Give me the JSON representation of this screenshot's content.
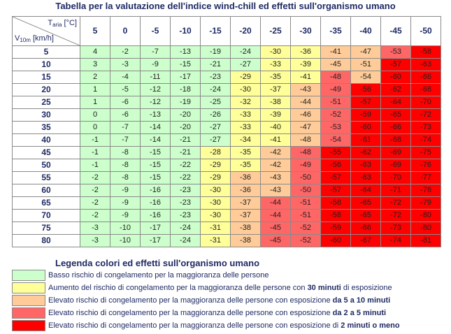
{
  "title": "Tabella per la valutazione dell'indice wind-chill ed effetti sull'organismo umano",
  "corner": {
    "temp_main": "T",
    "temp_sub": "aria",
    "temp_unit": "[°C]",
    "wind_main": "V",
    "wind_sub": "10m",
    "wind_unit": "[km/h]"
  },
  "temperatures": [
    "5",
    "0",
    "-5",
    "-10",
    "-15",
    "-20",
    "-25",
    "-30",
    "-35",
    "-40",
    "-45",
    "-50"
  ],
  "rows": [
    {
      "wind": "5",
      "values": [
        "4",
        "-2",
        "-7",
        "-13",
        "-19",
        "-24",
        "-30",
        "-36",
        "-41",
        "-47",
        "-53",
        "-58"
      ],
      "levels": [
        1,
        1,
        1,
        1,
        1,
        1,
        2,
        2,
        3,
        3,
        4,
        5
      ]
    },
    {
      "wind": "10",
      "values": [
        "3",
        "-3",
        "-9",
        "-15",
        "-21",
        "-27",
        "-33",
        "-39",
        "-45",
        "-51",
        "-57",
        "-63"
      ],
      "levels": [
        1,
        1,
        1,
        1,
        1,
        1,
        2,
        2,
        3,
        3,
        5,
        5
      ]
    },
    {
      "wind": "15",
      "values": [
        "2",
        "-4",
        "-11",
        "-17",
        "-23",
        "-29",
        "-35",
        "-41",
        "-48",
        "-54",
        "-60",
        "-66"
      ],
      "levels": [
        1,
        1,
        1,
        1,
        1,
        2,
        2,
        2,
        4,
        3,
        5,
        5
      ]
    },
    {
      "wind": "20",
      "values": [
        "1",
        "-5",
        "-12",
        "-18",
        "-24",
        "-30",
        "-37",
        "-43",
        "-49",
        "-56",
        "-62",
        "-68"
      ],
      "levels": [
        1,
        1,
        1,
        1,
        1,
        2,
        2,
        3,
        4,
        5,
        5,
        5
      ]
    },
    {
      "wind": "25",
      "values": [
        "1",
        "-6",
        "-12",
        "-19",
        "-25",
        "-32",
        "-38",
        "-44",
        "-51",
        "-57",
        "-64",
        "-70"
      ],
      "levels": [
        1,
        1,
        1,
        1,
        1,
        2,
        2,
        3,
        4,
        5,
        5,
        5
      ]
    },
    {
      "wind": "30",
      "values": [
        "0",
        "-6",
        "-13",
        "-20",
        "-26",
        "-33",
        "-39",
        "-46",
        "-52",
        "-59",
        "-65",
        "-72"
      ],
      "levels": [
        1,
        1,
        1,
        1,
        1,
        2,
        2,
        3,
        4,
        5,
        5,
        5
      ]
    },
    {
      "wind": "35",
      "values": [
        "0",
        "-7",
        "-14",
        "-20",
        "-27",
        "-33",
        "-40",
        "-47",
        "-53",
        "-60",
        "-66",
        "-73"
      ],
      "levels": [
        1,
        1,
        1,
        1,
        1,
        2,
        2,
        3,
        4,
        5,
        5,
        5
      ]
    },
    {
      "wind": "40",
      "values": [
        "-1",
        "-7",
        "-14",
        "-21",
        "-27",
        "-34",
        "-41",
        "-48",
        "-54",
        "-61",
        "-68",
        "-74"
      ],
      "levels": [
        1,
        1,
        1,
        1,
        1,
        2,
        2,
        3,
        4,
        5,
        5,
        5
      ]
    },
    {
      "wind": "45",
      "values": [
        "-1",
        "-8",
        "-15",
        "-21",
        "-28",
        "-35",
        "-42",
        "-48",
        "-55",
        "-62",
        "-69",
        "-75"
      ],
      "levels": [
        1,
        1,
        1,
        1,
        2,
        2,
        3,
        4,
        5,
        5,
        5,
        5
      ]
    },
    {
      "wind": "50",
      "values": [
        "-1",
        "-8",
        "-15",
        "-22",
        "-29",
        "-35",
        "-42",
        "-49",
        "-56",
        "-63",
        "-69",
        "-76"
      ],
      "levels": [
        1,
        1,
        1,
        1,
        2,
        2,
        3,
        4,
        5,
        5,
        5,
        5
      ]
    },
    {
      "wind": "55",
      "values": [
        "-2",
        "-8",
        "-15",
        "-22",
        "-29",
        "-36",
        "-43",
        "-50",
        "-57",
        "-63",
        "-70",
        "-77"
      ],
      "levels": [
        1,
        1,
        1,
        1,
        2,
        3,
        3,
        4,
        5,
        5,
        5,
        5
      ]
    },
    {
      "wind": "60",
      "values": [
        "-2",
        "-9",
        "-16",
        "-23",
        "-30",
        "-36",
        "-43",
        "-50",
        "-57",
        "-64",
        "-71",
        "-78"
      ],
      "levels": [
        1,
        1,
        1,
        1,
        2,
        3,
        3,
        4,
        5,
        5,
        5,
        5
      ]
    },
    {
      "wind": "65",
      "values": [
        "-2",
        "-9",
        "-16",
        "-23",
        "-30",
        "-37",
        "-44",
        "-51",
        "-58",
        "-65",
        "-72",
        "-79"
      ],
      "levels": [
        1,
        1,
        1,
        1,
        2,
        3,
        4,
        4,
        5,
        5,
        5,
        5
      ]
    },
    {
      "wind": "70",
      "values": [
        "-2",
        "-9",
        "-16",
        "-23",
        "-30",
        "-37",
        "-44",
        "-51",
        "-58",
        "-65",
        "-72",
        "-80"
      ],
      "levels": [
        1,
        1,
        1,
        1,
        2,
        3,
        4,
        4,
        5,
        5,
        5,
        5
      ]
    },
    {
      "wind": "75",
      "values": [
        "-3",
        "-10",
        "-17",
        "-24",
        "-31",
        "-38",
        "-45",
        "-52",
        "-59",
        "-66",
        "-73",
        "-80"
      ],
      "levels": [
        1,
        1,
        1,
        1,
        2,
        3,
        4,
        4,
        5,
        5,
        5,
        5
      ]
    },
    {
      "wind": "80",
      "values": [
        "-3",
        "-10",
        "-17",
        "-24",
        "-31",
        "-38",
        "-45",
        "-52",
        "-60",
        "-67",
        "-74",
        "-81"
      ],
      "levels": [
        1,
        1,
        1,
        1,
        2,
        3,
        4,
        4,
        5,
        5,
        5,
        5
      ]
    }
  ],
  "legend": {
    "title": "Legenda colori ed effetti sull'organismo umano",
    "items": [
      {
        "color": "#ccffcc",
        "text": "Basso rischio di congelamento per la maggioranza delle persone",
        "bold": ""
      },
      {
        "color": "#ffff99",
        "text": "Aumento del rischio di congelamento per la maggioranza delle persone con ",
        "bold": "30 minuti",
        "after": " di esposizione"
      },
      {
        "color": "#ffcc99",
        "text": "Elevato rischio di congelamento per la maggioranza delle persone con esposizione ",
        "bold": "da 5 a 10 minuti"
      },
      {
        "color": "#ff6666",
        "text": "Elevato rischio di congelamento per la maggioranza delle persone con esposizione ",
        "bold": "da 2 a 5 minuti"
      },
      {
        "color": "#ff0000",
        "text": "Elevato rischio di congelamento per la maggioranza delle persone con esposizione di ",
        "bold": " 2 minuti o meno"
      }
    ]
  }
}
